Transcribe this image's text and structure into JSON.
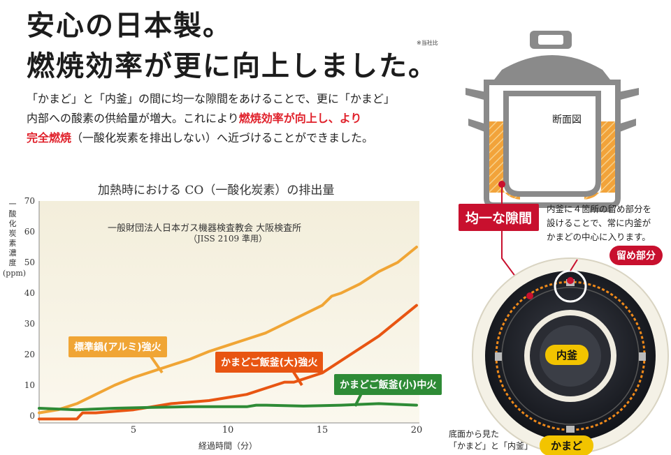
{
  "heading": {
    "line1": "安心の日本製。",
    "line2": "燃焼効率が更に向上しました。",
    "note": "※当社比"
  },
  "description": {
    "part1": "「かまど」と「内釜」の間に均一な隙間をあけることで、更に「かまど」",
    "part2": "内部への酸素の供給量が増大。これにより",
    "highlight1": "燃焼効率が向上し、より",
    "highlight2": "完全燃焼",
    "part3": "（一酸化炭素を排出しない）へ近づけることができました。"
  },
  "colors": {
    "standard": "#f0a535",
    "large": "#e85512",
    "small": "#2e8b36",
    "accent_red": "#c8102e",
    "gold": "#f2c400"
  },
  "chart_data": {
    "type": "line",
    "title": "加熱時における CO（一酸化炭素）の排出量",
    "source_line1": "一般財団法人日本ガス機器検査教会 大阪検査所",
    "source_line2": "（JISS 2109 準用）",
    "ylabel": "一酸化炭素濃度",
    "yunit": "(ppm)",
    "xlabel": "経過時間（分）",
    "xlim": [
      0,
      20
    ],
    "ylim": [
      0,
      70
    ],
    "xticks": [
      5,
      10,
      15,
      20
    ],
    "yticks": [
      0,
      10,
      20,
      30,
      40,
      50,
      60,
      70
    ],
    "grid": false,
    "series": [
      {
        "name": "標準鍋(アルミ)強火",
        "x": [
          0,
          1,
          2,
          3,
          4,
          5,
          6,
          7,
          8,
          9,
          10,
          11,
          12,
          13,
          14,
          15,
          15.5,
          16,
          17,
          18,
          19,
          20
        ],
        "values": [
          1,
          2,
          4,
          7,
          10,
          12.5,
          14.5,
          16.5,
          18.5,
          21,
          23,
          25,
          27,
          30,
          33,
          36,
          39,
          40,
          43,
          47,
          50,
          55
        ]
      },
      {
        "name": "かまどご飯釜(大)強火",
        "x": [
          0,
          1,
          2,
          2.3,
          3,
          4,
          5,
          6,
          7,
          8,
          9,
          10,
          11,
          12,
          13,
          13.5,
          14,
          15,
          16,
          17,
          18,
          19,
          20
        ],
        "values": [
          -1,
          -1,
          -1,
          1,
          1,
          1.5,
          2,
          3,
          4,
          4.5,
          5,
          6,
          7,
          9,
          11,
          11,
          12,
          14,
          18,
          22,
          26,
          31,
          36
        ]
      },
      {
        "name": "かまどご飯釜(小)中火",
        "x": [
          0,
          2,
          4,
          6,
          8,
          10,
          11,
          11.5,
          12,
          14,
          16,
          18,
          20
        ],
        "values": [
          2.5,
          2,
          2.5,
          2.8,
          3,
          3,
          3,
          3.5,
          3.5,
          3.2,
          3.5,
          4,
          3.5
        ]
      }
    ]
  },
  "diagram": {
    "cross_section_label": "断面図",
    "gap_label": "均一な隙間",
    "gap_note_line1": "内釜に４箇所の留め部分を",
    "gap_note_line2": "設けることで、常に内釜が",
    "gap_note_line3": "かまどの中心に入ります。",
    "stopper_label": "留め部分",
    "inner_pot_label": "内釜",
    "kamado_label": "かまど",
    "bottom_caption_line1": "底面から見た",
    "bottom_caption_line2": "「かまど」と「内釜」"
  }
}
